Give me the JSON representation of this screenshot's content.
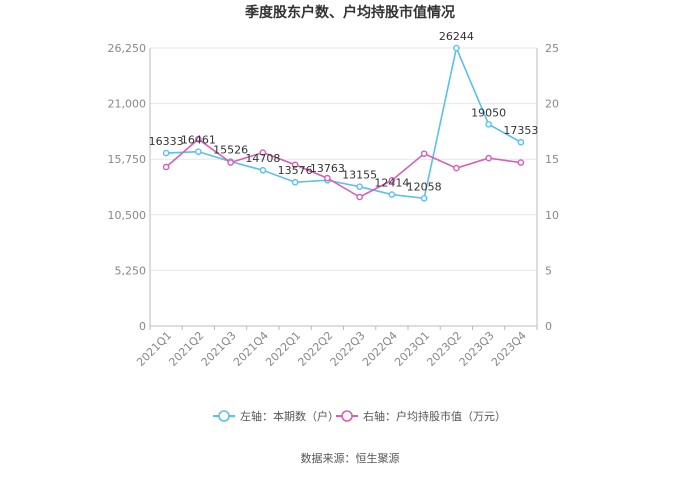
{
  "chart_data": {
    "type": "line",
    "title": "季度股东户数、户均持股市值情况",
    "categories": [
      "2021Q1",
      "2021Q2",
      "2021Q3",
      "2021Q4",
      "2022Q1",
      "2022Q2",
      "2022Q3",
      "2022Q4",
      "2023Q1",
      "2023Q2",
      "2023Q3",
      "2023Q4"
    ],
    "series": [
      {
        "name": "左轴：本期数（户）",
        "axis": "left",
        "color": "#5bc0eb",
        "values": [
          16333,
          16461,
          15526,
          14708,
          13576,
          13763,
          13155,
          12414,
          12058,
          26244,
          19050,
          17353
        ],
        "show_labels": true
      },
      {
        "name": "右轴：户均持股市值（万元）",
        "axis": "right",
        "color": "#d660b4",
        "values": [
          14.3,
          16.8,
          14.7,
          15.6,
          14.5,
          13.3,
          11.6,
          13.1,
          15.5,
          14.2,
          15.1,
          14.7
        ],
        "show_labels": false
      }
    ],
    "left_axis": {
      "min": 0,
      "max": 26250,
      "ticks": [
        0,
        5250,
        10500,
        15750,
        21000,
        26250
      ],
      "tick_labels": [
        "0",
        "5,250",
        "10,500",
        "15,750",
        "21,000",
        "26,250"
      ]
    },
    "right_axis": {
      "min": 0,
      "max": 25,
      "ticks": [
        0,
        5,
        10,
        15,
        20,
        25
      ],
      "tick_labels": [
        "0",
        "5",
        "10",
        "15",
        "20",
        "25"
      ]
    },
    "grid": true,
    "legend_position": "bottom",
    "source": "数据来源：恒生聚源"
  }
}
